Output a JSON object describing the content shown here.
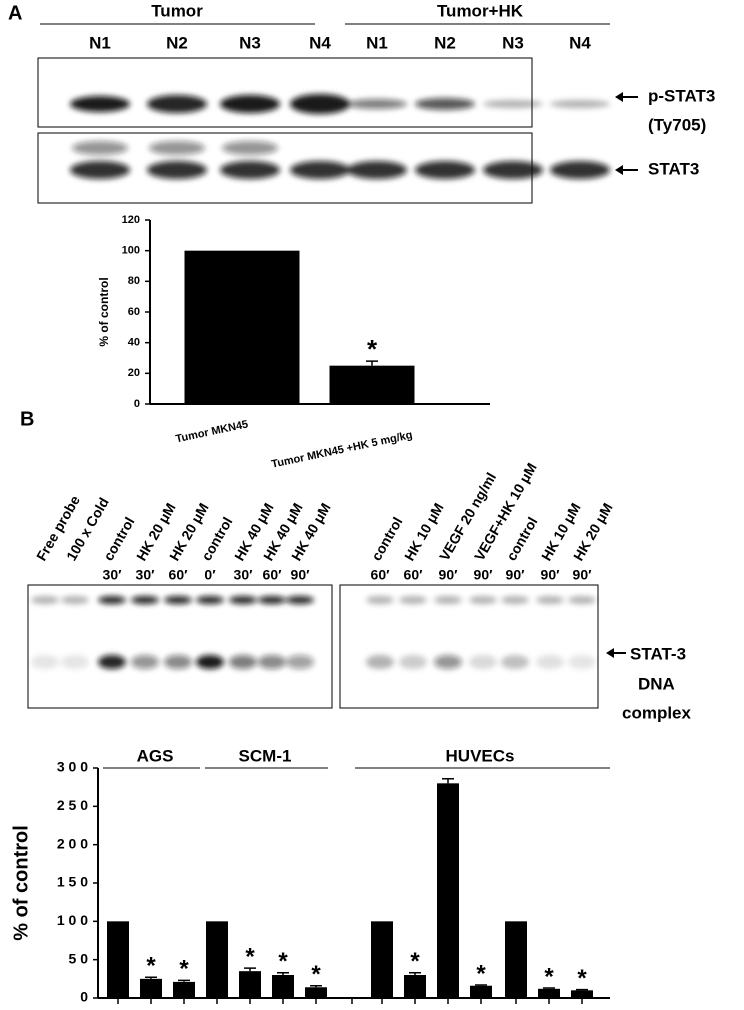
{
  "panels": {
    "A": {
      "label": "A",
      "groups": [
        "Tumor",
        "Tumor+HK"
      ],
      "lanes": [
        "N1",
        "N2",
        "N3",
        "N4",
        "N1",
        "N2",
        "N3",
        "N4"
      ],
      "blots": [
        [
          "p-STAT3",
          "(Ty705)"
        ],
        [
          "STAT3"
        ]
      ]
    },
    "B": {
      "label": "B",
      "gels": [
        {
          "lanes": [
            {
              "label": "Free probe",
              "time": null
            },
            {
              "label": "100 x Cold",
              "time": null
            },
            {
              "label": "control",
              "time": "30′"
            },
            {
              "label": "HK 20 μM",
              "time": "30′"
            },
            {
              "label": "HK 20 μM",
              "time": "60′"
            },
            {
              "label": "control",
              "time": "0′"
            },
            {
              "label": "HK 40 μM",
              "time": "30′"
            },
            {
              "label": "HK 40 μM",
              "time": "60′"
            },
            {
              "label": "HK 40 μM",
              "time": "90′"
            }
          ]
        },
        {
          "lanes": [
            {
              "label": "control",
              "time": "60′"
            },
            {
              "label": "HK 10 μM",
              "time": "60′"
            },
            {
              "label": "VEGF 20 ng/ml",
              "time": "90′"
            },
            {
              "label": "VEGF+HK 10 μM",
              "time": "90′"
            },
            {
              "label": "control",
              "time": "90′"
            },
            {
              "label": "HK 10 μM",
              "time": "90′"
            },
            {
              "label": "HK 20 μM",
              "time": "90′"
            }
          ]
        }
      ],
      "complex_label": [
        "STAT-3",
        "DNA",
        "complex"
      ],
      "groups": [
        "AGS",
        "SCM-1",
        "HUVECs"
      ]
    }
  },
  "chart_data": [
    {
      "type": "bar",
      "ylabel": "% of control",
      "categories": [
        "Tumor MKN45",
        "Tumor MKN45 +HK 5 mg/kg"
      ],
      "values": [
        100,
        25
      ],
      "errors": [
        null,
        3
      ],
      "significance": [
        null,
        "*"
      ],
      "color": "#000000",
      "ylim": [
        0,
        120
      ],
      "yticks": [
        0,
        20,
        40,
        60,
        80,
        100,
        120
      ]
    },
    {
      "type": "bar",
      "ylabel": "% of control",
      "categories": [
        null,
        null,
        null,
        null,
        null,
        null,
        null,
        null,
        null,
        null,
        null,
        null,
        null,
        null,
        null
      ],
      "values": [
        100,
        25,
        21,
        100,
        35,
        30,
        14,
        null,
        100,
        30,
        280,
        16,
        100,
        12,
        10
      ],
      "errors": [
        null,
        2,
        2,
        null,
        4,
        3,
        2,
        null,
        null,
        3,
        6,
        1,
        null,
        1,
        1
      ],
      "significance": [
        null,
        "*",
        "*",
        null,
        "*",
        "*",
        "*",
        null,
        null,
        "*",
        null,
        "*",
        null,
        "*",
        "*"
      ],
      "color": "#000000",
      "ylim": [
        0,
        300
      ],
      "yticks": [
        0,
        {
          "value": 50,
          "label": "5 0"
        },
        {
          "value": 100,
          "label": "1 0 0"
        },
        {
          "value": 150,
          "label": "1 5 0"
        },
        {
          "value": 200,
          "label": "2 0 0"
        },
        {
          "value": 250,
          "label": "2 5 0"
        },
        {
          "value": 300,
          "label": "3 0 0"
        }
      ]
    }
  ]
}
